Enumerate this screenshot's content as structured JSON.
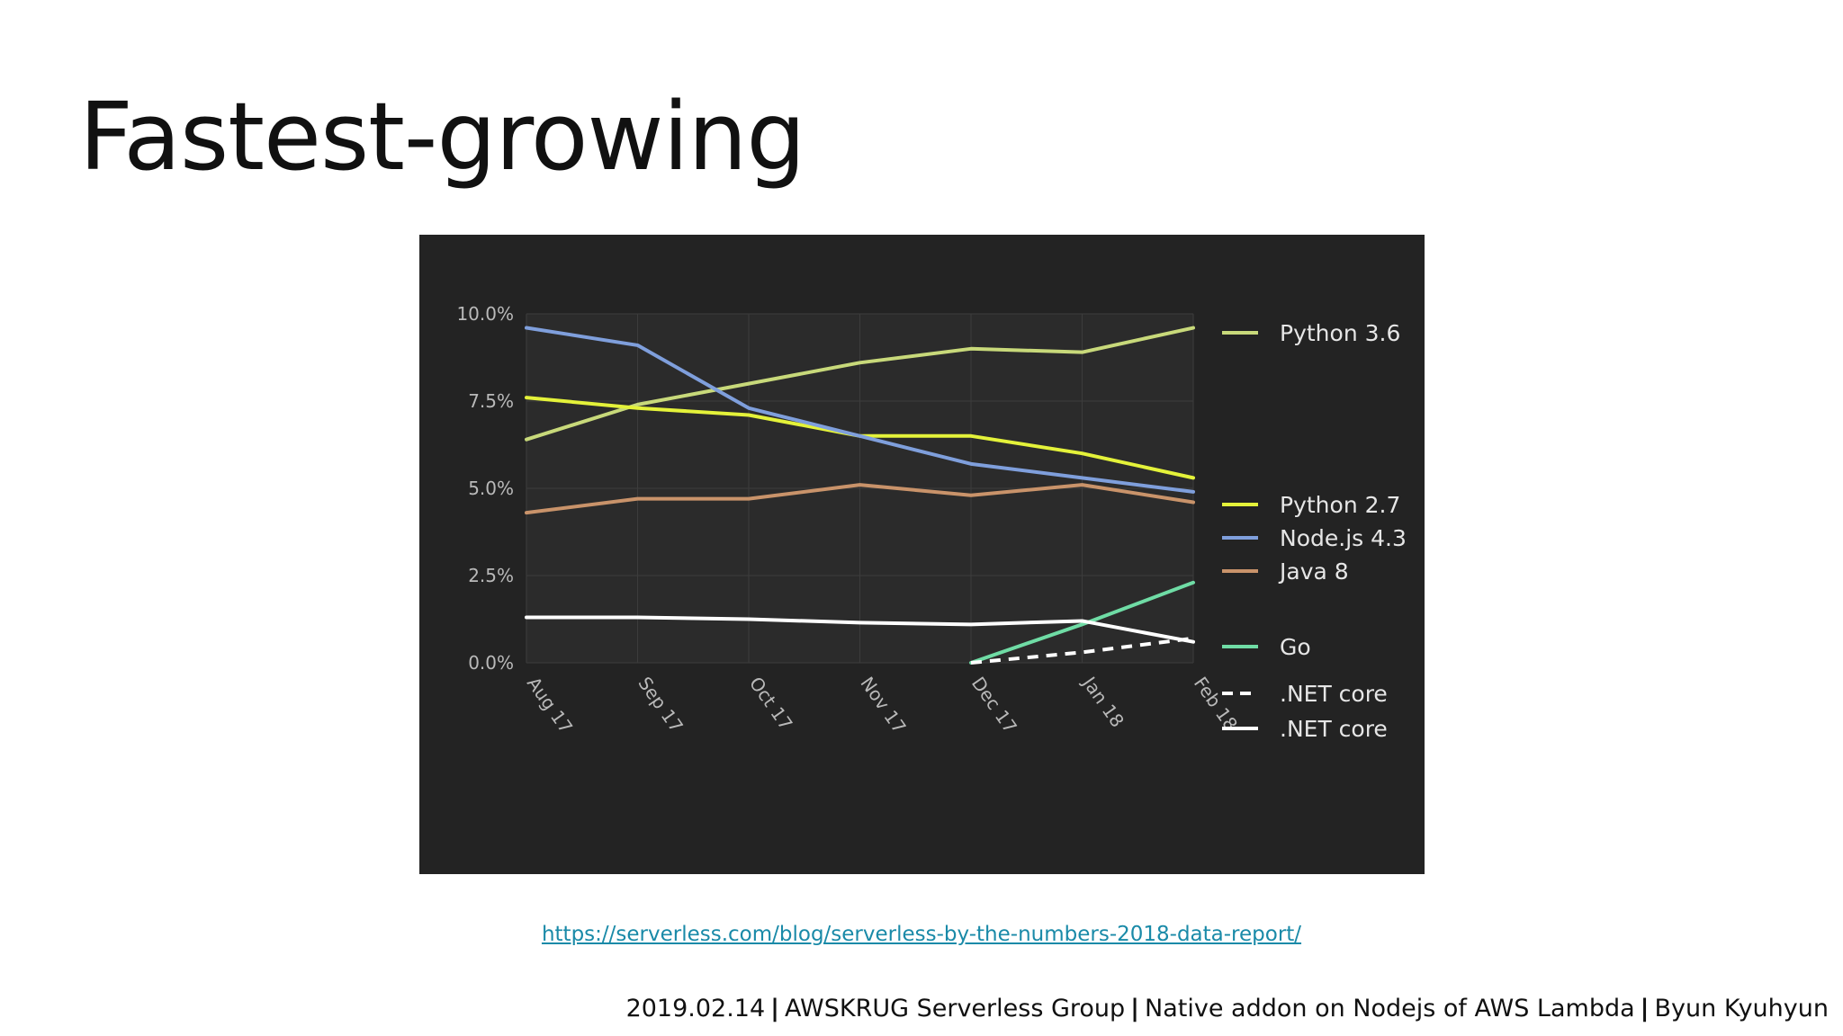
{
  "slide": {
    "title": "Fastest-growing",
    "source_url": "https://serverless.com/blog/serverless-by-the-numbers-2018-data-report/",
    "footer": {
      "date": "2019.02.14",
      "event": "AWSKRUG Serverless Group",
      "talk": "Native addon on Nodejs of AWS Lambda",
      "author": "Byun Kyuhyun"
    }
  },
  "colors": {
    "chart_background": "#232323",
    "plot_background": "#2b2b2b",
    "gridline": "#3c3c3c",
    "tick_text": "#b9b9b9",
    "legend_text": "#e6e6e6"
  },
  "chart_data": {
    "type": "line",
    "x": [
      "Aug 17",
      "Sep 17",
      "Oct 17",
      "Nov 17",
      "Dec 17",
      "Jan 18",
      "Feb 18"
    ],
    "y_ticks": [
      "0.0%",
      "2.5%",
      "5.0%",
      "7.5%",
      "10.0%"
    ],
    "ylim": [
      0,
      10
    ],
    "grid": true,
    "legend_position": "right",
    "series": [
      {
        "name": "Python 3.6",
        "color": "#c8d97a",
        "dashed": false,
        "values": [
          6.4,
          7.4,
          8.0,
          8.6,
          9.0,
          8.9,
          9.6
        ]
      },
      {
        "name": "Python 2.7",
        "color": "#e4f23a",
        "dashed": false,
        "values": [
          7.6,
          7.3,
          7.1,
          6.5,
          6.5,
          6.0,
          5.3
        ]
      },
      {
        "name": "Node.js 4.3",
        "color": "#7f9fdc",
        "dashed": false,
        "values": [
          9.6,
          9.1,
          7.3,
          6.5,
          5.7,
          5.3,
          4.9
        ]
      },
      {
        "name": "Java 8",
        "color": "#c9936a",
        "dashed": false,
        "values": [
          4.3,
          4.7,
          4.7,
          5.1,
          4.8,
          5.1,
          4.6
        ]
      },
      {
        "name": "Go",
        "color": "#6fdca5",
        "dashed": false,
        "values": [
          null,
          null,
          null,
          null,
          0.0,
          1.1,
          2.3
        ]
      },
      {
        "name": ".NET core",
        "color": "#ffffff",
        "dashed": true,
        "values": [
          null,
          null,
          null,
          null,
          0.0,
          0.3,
          0.7
        ]
      },
      {
        "name": ".NET core",
        "color": "#ffffff",
        "dashed": false,
        "values": [
          1.3,
          1.3,
          1.25,
          1.15,
          1.1,
          1.2,
          0.6
        ]
      }
    ]
  }
}
